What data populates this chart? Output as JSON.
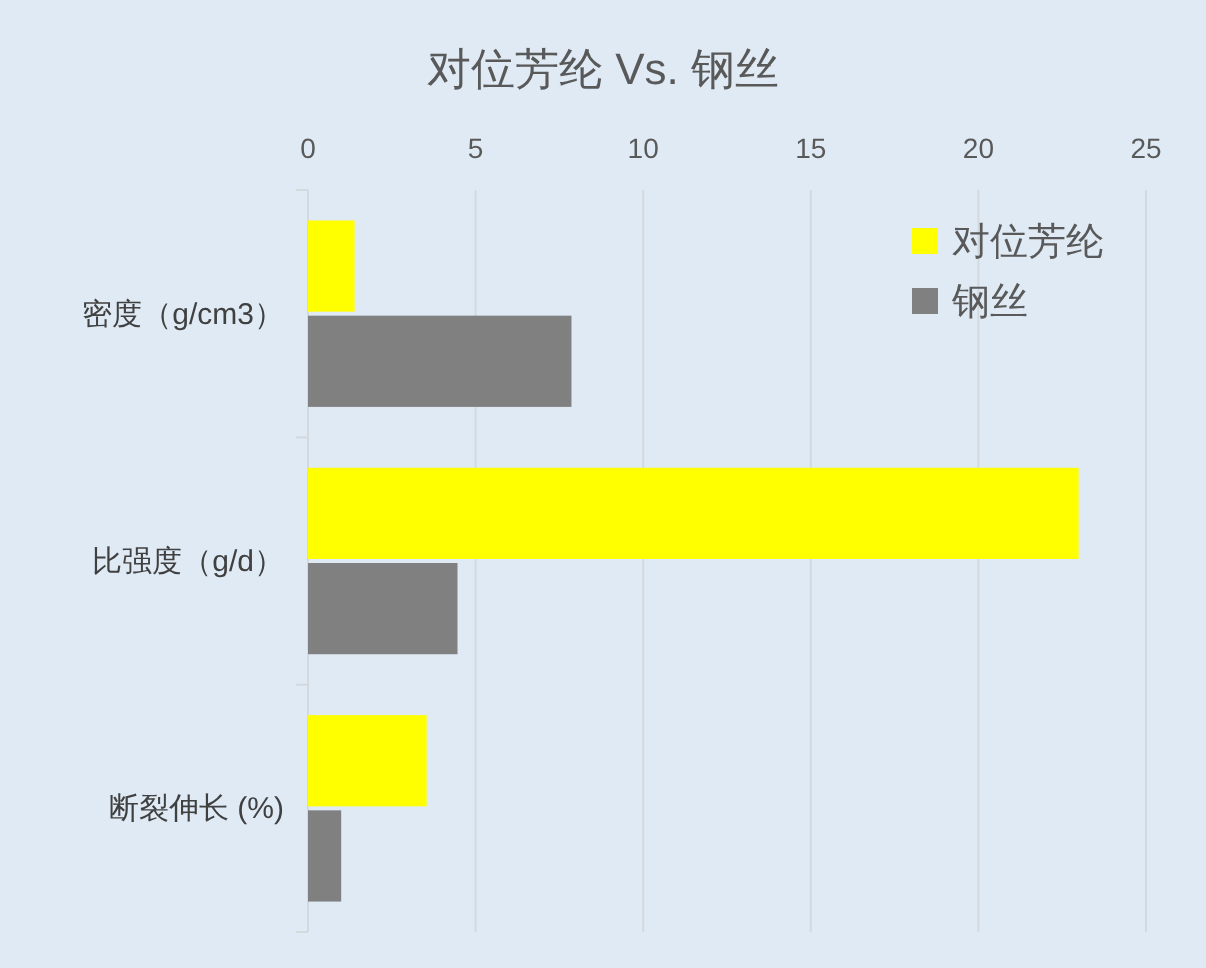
{
  "chart_data": {
    "type": "bar",
    "orientation": "horizontal",
    "title": "对位芳纶 Vs. 钢丝",
    "categories": [
      "密度（g/cm3）",
      "比强度（g/d）",
      "断裂伸长 (%)"
    ],
    "series": [
      {
        "name": "对位芳纶",
        "color": "#ffff00",
        "values": [
          1.39,
          22.99,
          3.54
        ]
      },
      {
        "name": "钢丝",
        "color": "#808080",
        "values": [
          7.86,
          4.46,
          0.99
        ]
      }
    ],
    "xlim": [
      0,
      25
    ],
    "xticks": [
      0,
      5,
      10,
      15,
      20,
      25
    ],
    "grid": "x",
    "legend": "top right"
  }
}
